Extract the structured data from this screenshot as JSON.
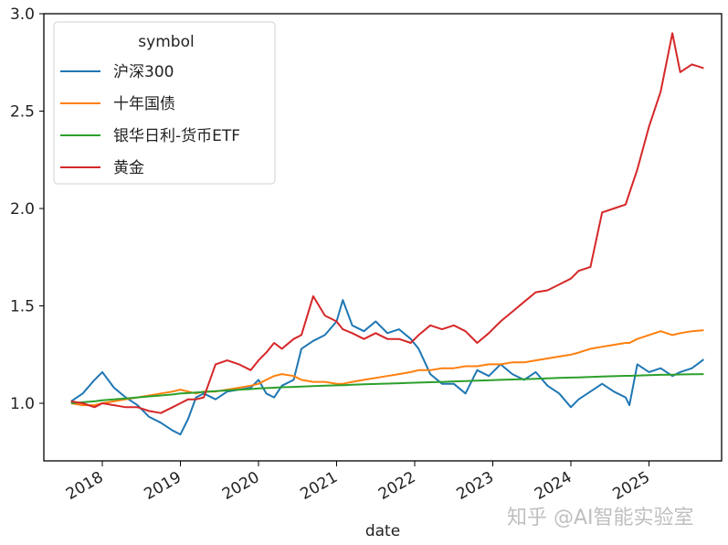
{
  "chart_data": {
    "type": "line",
    "title": "",
    "xlabel": "date",
    "ylabel": "",
    "ylim": [
      0.7,
      3.0
    ],
    "xlim": [
      2017.6,
      2025.72
    ],
    "yticks": [
      "1.0",
      "1.5",
      "2.0",
      "2.5",
      "3.0"
    ],
    "xticks": [
      "2018",
      "2019",
      "2020",
      "2021",
      "2022",
      "2023",
      "2024",
      "2025"
    ],
    "grid": false,
    "legend": {
      "title": "symbol",
      "position": "upper left",
      "entries": [
        "沪深300",
        "十年国债",
        "银华日利-货币ETF",
        "黄金"
      ]
    },
    "x": [
      2017.6,
      2017.75,
      2017.9,
      2018.0,
      2018.15,
      2018.3,
      2018.45,
      2018.6,
      2018.75,
      2018.9,
      2019.0,
      2019.1,
      2019.2,
      2019.3,
      2019.45,
      2019.6,
      2019.75,
      2019.9,
      2020.0,
      2020.1,
      2020.2,
      2020.3,
      2020.45,
      2020.55,
      2020.7,
      2020.85,
      2021.0,
      2021.08,
      2021.2,
      2021.35,
      2021.5,
      2021.65,
      2021.8,
      2021.95,
      2022.05,
      2022.2,
      2022.35,
      2022.5,
      2022.65,
      2022.8,
      2022.95,
      2023.1,
      2023.25,
      2023.4,
      2023.55,
      2023.7,
      2023.85,
      2024.0,
      2024.1,
      2024.25,
      2024.4,
      2024.55,
      2024.7,
      2024.75,
      2024.85,
      2025.0,
      2025.15,
      2025.3,
      2025.4,
      2025.55,
      2025.7
    ],
    "series": [
      {
        "name": "沪深300",
        "color": "#1f77b4",
        "values": [
          1.01,
          1.05,
          1.12,
          1.16,
          1.08,
          1.03,
          0.99,
          0.93,
          0.9,
          0.86,
          0.84,
          0.92,
          1.03,
          1.05,
          1.02,
          1.06,
          1.07,
          1.08,
          1.12,
          1.05,
          1.03,
          1.09,
          1.12,
          1.28,
          1.32,
          1.35,
          1.42,
          1.53,
          1.4,
          1.37,
          1.42,
          1.36,
          1.38,
          1.33,
          1.28,
          1.15,
          1.1,
          1.1,
          1.05,
          1.17,
          1.14,
          1.2,
          1.15,
          1.12,
          1.16,
          1.09,
          1.05,
          0.98,
          1.02,
          1.06,
          1.1,
          1.06,
          1.03,
          0.99,
          1.2,
          1.16,
          1.18,
          1.14,
          1.16,
          1.18,
          1.225
        ]
      },
      {
        "name": "十年国债",
        "color": "#ff7f0e",
        "values": [
          1.0,
          0.99,
          0.99,
          1.0,
          1.01,
          1.02,
          1.03,
          1.04,
          1.05,
          1.06,
          1.07,
          1.06,
          1.05,
          1.06,
          1.06,
          1.07,
          1.08,
          1.09,
          1.1,
          1.12,
          1.14,
          1.15,
          1.14,
          1.12,
          1.11,
          1.11,
          1.1,
          1.1,
          1.11,
          1.12,
          1.13,
          1.14,
          1.15,
          1.16,
          1.17,
          1.17,
          1.18,
          1.18,
          1.19,
          1.19,
          1.2,
          1.2,
          1.21,
          1.21,
          1.22,
          1.23,
          1.24,
          1.25,
          1.26,
          1.28,
          1.29,
          1.3,
          1.31,
          1.31,
          1.33,
          1.35,
          1.37,
          1.35,
          1.36,
          1.37,
          1.375
        ]
      },
      {
        "name": "银华日利-货币ETF",
        "color": "#2ca02c",
        "values": [
          1.0,
          1.005,
          1.01,
          1.015,
          1.02,
          1.025,
          1.03,
          1.035,
          1.04,
          1.045,
          1.05,
          1.052,
          1.055,
          1.058,
          1.062,
          1.066,
          1.07,
          1.073,
          1.076,
          1.078,
          1.08,
          1.082,
          1.084,
          1.086,
          1.088,
          1.09,
          1.092,
          1.093,
          1.095,
          1.097,
          1.099,
          1.101,
          1.103,
          1.105,
          1.106,
          1.108,
          1.11,
          1.112,
          1.114,
          1.116,
          1.118,
          1.12,
          1.122,
          1.124,
          1.126,
          1.128,
          1.13,
          1.132,
          1.133,
          1.135,
          1.137,
          1.139,
          1.141,
          1.141,
          1.142,
          1.144,
          1.146,
          1.147,
          1.148,
          1.149,
          1.15
        ]
      },
      {
        "name": "黄金",
        "color": "#d62728",
        "values": [
          1.01,
          1.0,
          0.98,
          1.0,
          0.99,
          0.98,
          0.98,
          0.96,
          0.95,
          0.98,
          1.0,
          1.02,
          1.02,
          1.03,
          1.2,
          1.22,
          1.2,
          1.17,
          1.22,
          1.26,
          1.31,
          1.28,
          1.33,
          1.35,
          1.55,
          1.45,
          1.42,
          1.38,
          1.36,
          1.33,
          1.36,
          1.33,
          1.33,
          1.31,
          1.35,
          1.4,
          1.38,
          1.4,
          1.37,
          1.31,
          1.36,
          1.42,
          1.47,
          1.52,
          1.57,
          1.58,
          1.61,
          1.64,
          1.68,
          1.7,
          1.98,
          2.0,
          2.02,
          2.08,
          2.2,
          2.42,
          2.6,
          2.9,
          2.7,
          2.74,
          2.72
        ]
      }
    ],
    "watermark": "知乎 @AI智能实验室"
  }
}
